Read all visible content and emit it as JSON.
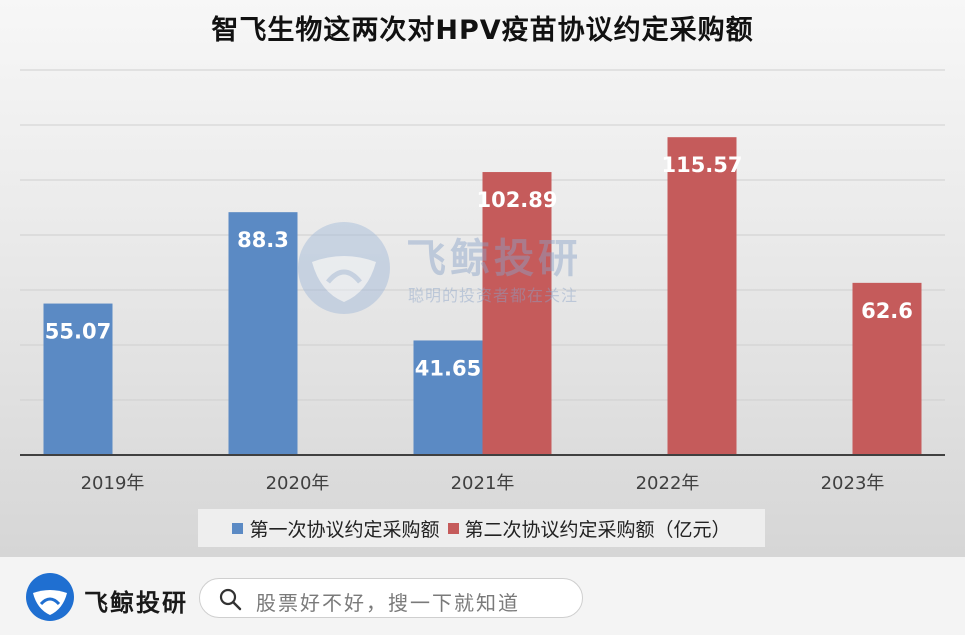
{
  "chart_data": {
    "type": "bar",
    "title": "智飞生物这两次对HPV疫苗协议约定采购额",
    "categories": [
      "2019年",
      "2020年",
      "2021年",
      "2022年",
      "2023年"
    ],
    "series": [
      {
        "name": "第一次协议约定采购额",
        "values": [
          55.07,
          88.3,
          41.65,
          null,
          null
        ],
        "labels": [
          "55.07",
          "88.3",
          "41.65",
          "",
          ""
        ],
        "color": "#5b8ac4"
      },
      {
        "name": "第二次协议约定采购额（亿元）",
        "values": [
          null,
          null,
          102.89,
          115.57,
          62.6
        ],
        "labels": [
          "",
          "",
          "102.89",
          "115.57",
          "62.6"
        ],
        "color": "#c55b5b"
      }
    ],
    "ylim": [
      0,
      140
    ],
    "grid": true,
    "legend": "bottom"
  },
  "watermark": {
    "title": "飞鲸投研",
    "slogan": "聪明的投资者都在关注"
  },
  "footer": {
    "brand": "飞鲸投研",
    "search_placeholder": "股票好不好，搜一下就知道",
    "brand_color": "#1f6fd1"
  }
}
